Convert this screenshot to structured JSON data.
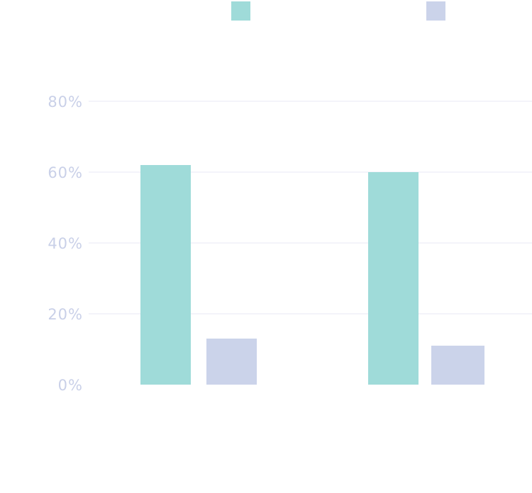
{
  "chart_data": {
    "type": "bar",
    "title": "",
    "xlabel": "",
    "ylabel": "",
    "categories": [
      "",
      ""
    ],
    "series": [
      {
        "values": [
          62,
          60
        ],
        "color": "#9fdbd9"
      },
      {
        "values": [
          13,
          11
        ],
        "color": "#cbd3ea"
      }
    ],
    "ylim": [
      0,
      80
    ],
    "yticks": [
      {
        "value": 0,
        "label": "0%"
      },
      {
        "value": 20,
        "label": "20%"
      },
      {
        "value": 40,
        "label": "40%"
      },
      {
        "value": 60,
        "label": "60%"
      },
      {
        "value": 80,
        "label": "80%"
      }
    ],
    "grid": true,
    "legend_position": "top",
    "colors": {
      "grid": "#e8eaf4",
      "tick_text": "#c9d0e8"
    }
  }
}
